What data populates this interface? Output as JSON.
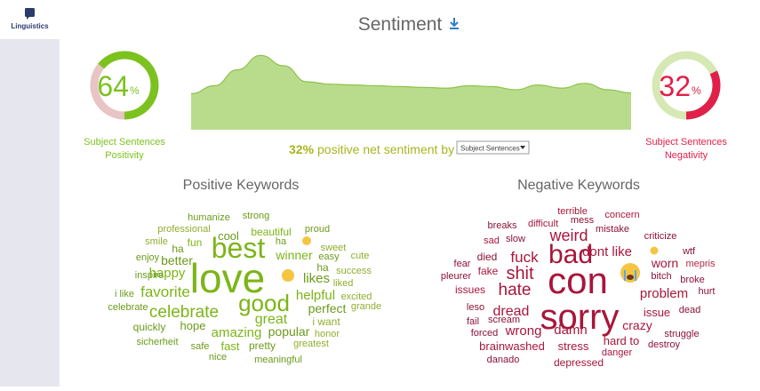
{
  "sidebar": {
    "label": "Linguistics"
  },
  "header": {
    "title": "Sentiment"
  },
  "gauges": [
    {
      "value": 64,
      "unit": "%",
      "label_lines": [
        "Subject Sentences",
        "Positivity"
      ],
      "color": "#7cc21e",
      "track": "#e8c4c4"
    },
    {
      "value": 32,
      "unit": "%",
      "label_lines": [
        "Subject Sentences",
        "Negativity"
      ],
      "color": "#e0204a",
      "track": "#d6e8b4"
    }
  ],
  "trend": {
    "values": [
      45,
      55,
      75,
      93,
      80,
      60,
      57,
      56,
      55,
      54,
      53,
      52,
      55,
      54,
      50,
      56,
      52,
      58,
      50,
      46
    ],
    "ylim": [
      0,
      100
    ],
    "color": "#b9dc8c",
    "line": "#8dc24a"
  },
  "summary": {
    "value": "32%",
    "text": "positive net sentiment by",
    "dropdown": "Subject Sentences"
  },
  "positive_keywords": {
    "title": "Positive Keywords",
    "words": [
      "humanize",
      "strong",
      "professional",
      "beautiful",
      "proud",
      "smile",
      "ha",
      "fun",
      "cool",
      "best",
      "ha",
      "sweet",
      "enjoy",
      "better",
      "winner",
      "easy",
      "cute",
      "happy",
      "love",
      "ha",
      "success",
      "inspire",
      "likes",
      "liked",
      "favorite",
      "good",
      "i like",
      "helpful",
      "excited",
      "celebrate",
      "celebrate",
      "perfect",
      "grande",
      "great",
      "quickly",
      "hope",
      "i want",
      "amazing",
      "popular",
      "honor",
      "sicherheit",
      "safe",
      "fast",
      "pretty",
      "greatest",
      "nice",
      "meaningful"
    ]
  },
  "negative_keywords": {
    "title": "Negative Keywords",
    "words": [
      "terrible",
      "mess",
      "concern",
      "breaks",
      "difficult",
      "mistake",
      "sad",
      "slow",
      "weird",
      "criticize",
      "bad",
      "dont like",
      "wtf",
      "died",
      "fuck",
      "worn",
      "fear",
      "mepris",
      "pleurer",
      "fake",
      "shit",
      "bitch",
      "broke",
      "con",
      "issues",
      "hate",
      "problem",
      "hurt",
      "leso",
      "sorry",
      "issue",
      "dead",
      "dread",
      "fail",
      "scream",
      "crazy",
      "forced",
      "wrong",
      "damn",
      "struggle",
      "hard to",
      "brainwashed",
      "stress",
      "destroy",
      "danger",
      "danado",
      "depressed"
    ]
  }
}
